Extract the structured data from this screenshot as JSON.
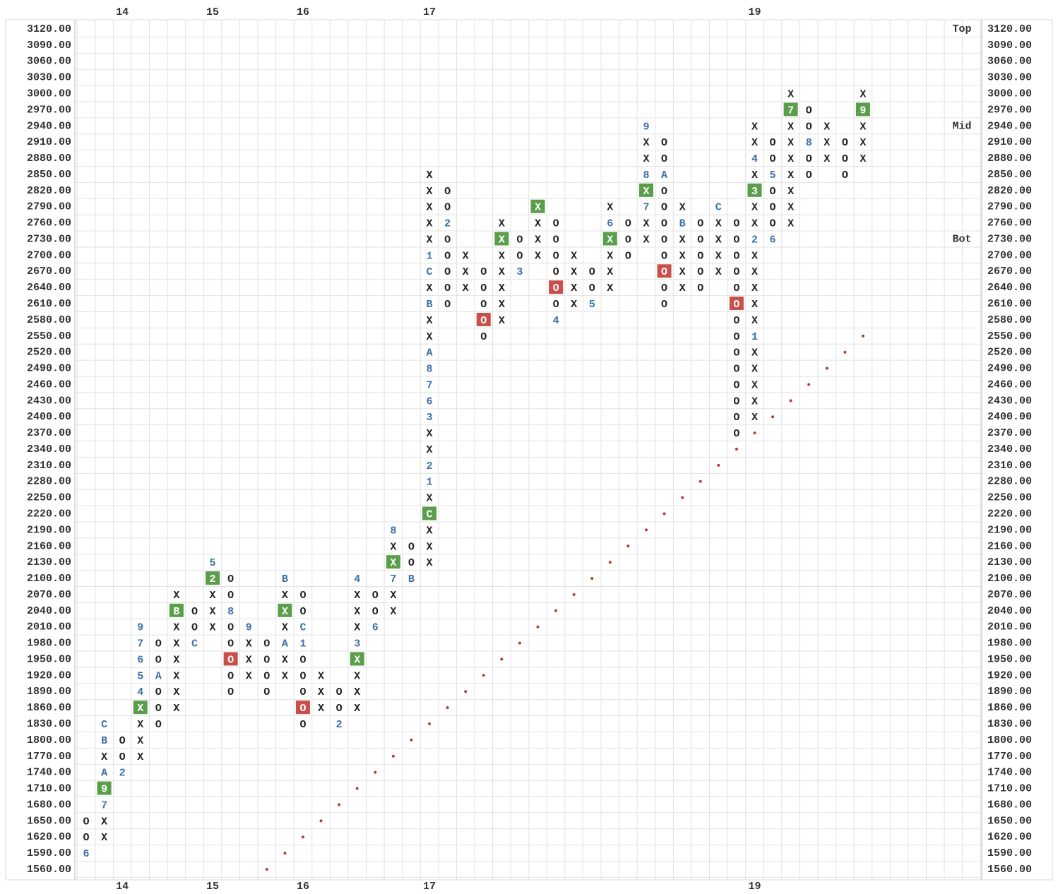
{
  "chart_data": {
    "type": "point-and-figure",
    "box_size": 30,
    "ylim": [
      1560,
      3120
    ],
    "yticks": [
      {
        "value": 3120,
        "label": "3120.00"
      },
      {
        "value": 3090,
        "label": "3090.00"
      },
      {
        "value": 3060,
        "label": "3060.00"
      },
      {
        "value": 3030,
        "label": "3030.00"
      },
      {
        "value": 3000,
        "label": "3000.00"
      },
      {
        "value": 2970,
        "label": "2970.00"
      },
      {
        "value": 2940,
        "label": "2940.00"
      },
      {
        "value": 2910,
        "label": "2910.00"
      },
      {
        "value": 2880,
        "label": "2880.00"
      },
      {
        "value": 2850,
        "label": "2850.00"
      },
      {
        "value": 2820,
        "label": "2820.00"
      },
      {
        "value": 2790,
        "label": "2790.00"
      },
      {
        "value": 2760,
        "label": "2760.00"
      },
      {
        "value": 2730,
        "label": "2730.00"
      },
      {
        "value": 2700,
        "label": "2700.00"
      },
      {
        "value": 2670,
        "label": "2670.00"
      },
      {
        "value": 2640,
        "label": "2640.00"
      },
      {
        "value": 2610,
        "label": "2610.00"
      },
      {
        "value": 2580,
        "label": "2580.00"
      },
      {
        "value": 2550,
        "label": "2550.00"
      },
      {
        "value": 2520,
        "label": "2520.00"
      },
      {
        "value": 2490,
        "label": "2490.00"
      },
      {
        "value": 2460,
        "label": "2460.00"
      },
      {
        "value": 2430,
        "label": "2430.00"
      },
      {
        "value": 2400,
        "label": "2400.00"
      },
      {
        "value": 2370,
        "label": "2370.00"
      },
      {
        "value": 2340,
        "label": "2340.00"
      },
      {
        "value": 2310,
        "label": "2310.00"
      },
      {
        "value": 2280,
        "label": "2280.00"
      },
      {
        "value": 2250,
        "label": "2250.00"
      },
      {
        "value": 2220,
        "label": "2220.00"
      },
      {
        "value": 2190,
        "label": "2190.00"
      },
      {
        "value": 2160,
        "label": "2160.00"
      },
      {
        "value": 2130,
        "label": "2130.00"
      },
      {
        "value": 2100,
        "label": "2100.00"
      },
      {
        "value": 2070,
        "label": "2070.00"
      },
      {
        "value": 2040,
        "label": "2040.00"
      },
      {
        "value": 2010,
        "label": "2010.00"
      },
      {
        "value": 1980,
        "label": "1980.00"
      },
      {
        "value": 1950,
        "label": "1950.00"
      },
      {
        "value": 1920,
        "label": "1920.00"
      },
      {
        "value": 1890,
        "label": "1890.00"
      },
      {
        "value": 1860,
        "label": "1860.00"
      },
      {
        "value": 1830,
        "label": "1830.00"
      },
      {
        "value": 1800,
        "label": "1800.00"
      },
      {
        "value": 1770,
        "label": "1770.00"
      },
      {
        "value": 1740,
        "label": "1740.00"
      },
      {
        "value": 1710,
        "label": "1710.00"
      },
      {
        "value": 1680,
        "label": "1680.00"
      },
      {
        "value": 1650,
        "label": "1650.00"
      },
      {
        "value": 1620,
        "label": "1620.00"
      },
      {
        "value": 1590,
        "label": "1590.00"
      },
      {
        "value": 1560,
        "label": "1560.00"
      }
    ],
    "grid": true,
    "symbol_color": "#222222",
    "label_color": "#3f6fa8",
    "highlight_colors": {
      "X": "#5a9e4b",
      "O": "#c9504a"
    },
    "trend_color": "#c0392b",
    "years": [
      {
        "column": 2,
        "year": 14
      },
      {
        "column": 7,
        "year": 15
      },
      {
        "column": 12,
        "year": 16
      },
      {
        "column": 19,
        "year": 17
      },
      {
        "column": 37,
        "year": 19
      }
    ],
    "levels": [
      {
        "name": "Top",
        "price": 3120
      },
      {
        "name": "Mid",
        "price": 2940
      },
      {
        "name": "Bot",
        "price": 2730
      }
    ],
    "trend": {
      "columns": [
        10,
        43
      ],
      "prices": [
        1560,
        2550
      ]
    },
    "columns": [
      {
        "type": "O",
        "low": 1590,
        "high": 1650,
        "labels": [
          {
            "price": 1590,
            "text": "6"
          }
        ]
      },
      {
        "type": "X",
        "low": 1620,
        "high": 1830,
        "labels": [
          {
            "price": 1680,
            "text": "7"
          },
          {
            "price": 1710,
            "text": "9",
            "highlight": true
          },
          {
            "price": 1740,
            "text": "A"
          },
          {
            "price": 1800,
            "text": "B"
          },
          {
            "price": 1830,
            "text": "C"
          }
        ]
      },
      {
        "type": "O",
        "low": 1740,
        "high": 1800,
        "labels": [
          {
            "price": 1740,
            "text": "2"
          }
        ]
      },
      {
        "type": "X",
        "low": 1770,
        "high": 2010,
        "labels": [
          {
            "price": 1860,
            "highlight": true
          },
          {
            "price": 1890,
            "text": "4"
          },
          {
            "price": 1920,
            "text": "5"
          },
          {
            "price": 1950,
            "text": "6"
          },
          {
            "price": 1980,
            "text": "7"
          },
          {
            "price": 2010,
            "text": "9"
          }
        ]
      },
      {
        "type": "O",
        "low": 1830,
        "high": 1980,
        "labels": [
          {
            "price": 1920,
            "text": "A"
          }
        ]
      },
      {
        "type": "X",
        "low": 1860,
        "high": 2070,
        "labels": [
          {
            "price": 2040,
            "text": "B",
            "highlight": true
          }
        ]
      },
      {
        "type": "O",
        "low": 1980,
        "high": 2040,
        "labels": [
          {
            "price": 1980,
            "text": "C"
          }
        ]
      },
      {
        "type": "X",
        "low": 2010,
        "high": 2130,
        "labels": [
          {
            "price": 2100,
            "text": "2",
            "highlight": true
          },
          {
            "price": 2130,
            "text": "5"
          }
        ]
      },
      {
        "type": "O",
        "low": 1890,
        "high": 2100,
        "labels": [
          {
            "price": 2040,
            "text": "8"
          },
          {
            "price": 1950,
            "highlight": true
          }
        ]
      },
      {
        "type": "X",
        "low": 1920,
        "high": 2010,
        "labels": [
          {
            "price": 2010,
            "text": "9"
          }
        ]
      },
      {
        "type": "O",
        "low": 1890,
        "high": 1980,
        "labels": []
      },
      {
        "type": "X",
        "low": 1920,
        "high": 2100,
        "labels": [
          {
            "price": 1980,
            "text": "A"
          },
          {
            "price": 2040,
            "highlight": true
          },
          {
            "price": 2100,
            "text": "B"
          }
        ]
      },
      {
        "type": "O",
        "low": 1830,
        "high": 2070,
        "labels": [
          {
            "price": 2010,
            "text": "C"
          },
          {
            "price": 1980,
            "text": "1"
          },
          {
            "price": 1860,
            "highlight": true
          }
        ]
      },
      {
        "type": "X",
        "low": 1860,
        "high": 1920,
        "labels": []
      },
      {
        "type": "O",
        "low": 1830,
        "high": 1890,
        "labels": [
          {
            "price": 1830,
            "text": "2"
          }
        ]
      },
      {
        "type": "X",
        "low": 1860,
        "high": 2100,
        "labels": [
          {
            "price": 1950,
            "highlight": true
          },
          {
            "price": 1980,
            "text": "3"
          },
          {
            "price": 2100,
            "text": "4"
          }
        ]
      },
      {
        "type": "O",
        "low": 2010,
        "high": 2070,
        "labels": [
          {
            "price": 2010,
            "text": "6"
          }
        ]
      },
      {
        "type": "X",
        "low": 2040,
        "high": 2190,
        "labels": [
          {
            "price": 2100,
            "text": "7"
          },
          {
            "price": 2130,
            "highlight": true
          },
          {
            "price": 2190,
            "text": "8"
          }
        ]
      },
      {
        "type": "O",
        "low": 2100,
        "high": 2160,
        "labels": [
          {
            "price": 2100,
            "text": "B"
          }
        ]
      },
      {
        "type": "X",
        "low": 2130,
        "high": 2850,
        "labels": [
          {
            "price": 2220,
            "text": "C",
            "highlight": true
          },
          {
            "price": 2280,
            "text": "1"
          },
          {
            "price": 2310,
            "text": "2"
          },
          {
            "price": 2400,
            "text": "3"
          },
          {
            "price": 2430,
            "text": "6"
          },
          {
            "price": 2460,
            "text": "7"
          },
          {
            "price": 2490,
            "text": "8"
          },
          {
            "price": 2520,
            "text": "A"
          },
          {
            "price": 2610,
            "text": "B"
          },
          {
            "price": 2670,
            "text": "C"
          },
          {
            "price": 2700,
            "text": "1"
          }
        ]
      },
      {
        "type": "O",
        "low": 2610,
        "high": 2820,
        "labels": [
          {
            "price": 2760,
            "text": "2"
          }
        ]
      },
      {
        "type": "X",
        "low": 2640,
        "high": 2700,
        "labels": []
      },
      {
        "type": "O",
        "low": 2550,
        "high": 2670,
        "labels": [
          {
            "price": 2580,
            "highlight": true
          }
        ]
      },
      {
        "type": "X",
        "low": 2580,
        "high": 2760,
        "labels": [
          {
            "price": 2730,
            "highlight": true
          }
        ]
      },
      {
        "type": "O",
        "low": 2670,
        "high": 2730,
        "labels": [
          {
            "price": 2670,
            "text": "3"
          }
        ]
      },
      {
        "type": "X",
        "low": 2700,
        "high": 2790,
        "labels": [
          {
            "price": 2790,
            "highlight": true
          }
        ]
      },
      {
        "type": "O",
        "low": 2580,
        "high": 2760,
        "labels": [
          {
            "price": 2640,
            "highlight": true
          },
          {
            "price": 2580,
            "text": "4"
          }
        ]
      },
      {
        "type": "X",
        "low": 2610,
        "high": 2700,
        "labels": []
      },
      {
        "type": "O",
        "low": 2610,
        "high": 2670,
        "labels": [
          {
            "price": 2610,
            "text": "5"
          }
        ]
      },
      {
        "type": "X",
        "low": 2640,
        "high": 2790,
        "labels": [
          {
            "price": 2730,
            "highlight": true
          },
          {
            "price": 2760,
            "text": "6"
          }
        ]
      },
      {
        "type": "O",
        "low": 2700,
        "high": 2760,
        "labels": []
      },
      {
        "type": "X",
        "low": 2730,
        "high": 2940,
        "labels": [
          {
            "price": 2790,
            "text": "7"
          },
          {
            "price": 2820,
            "highlight": true
          },
          {
            "price": 2850,
            "text": "8"
          },
          {
            "price": 2940,
            "text": "9"
          }
        ]
      },
      {
        "type": "O",
        "low": 2610,
        "high": 2910,
        "labels": [
          {
            "price": 2850,
            "text": "A"
          },
          {
            "price": 2670,
            "highlight": true
          }
        ]
      },
      {
        "type": "X",
        "low": 2640,
        "high": 2790,
        "labels": [
          {
            "price": 2760,
            "text": "B"
          }
        ]
      },
      {
        "type": "O",
        "low": 2640,
        "high": 2760,
        "labels": []
      },
      {
        "type": "X",
        "low": 2670,
        "high": 2790,
        "labels": [
          {
            "price": 2790,
            "text": "C"
          }
        ]
      },
      {
        "type": "O",
        "low": 2370,
        "high": 2760,
        "labels": [
          {
            "price": 2610,
            "highlight": true
          }
        ]
      },
      {
        "type": "X",
        "low": 2400,
        "high": 2940,
        "labels": [
          {
            "price": 2550,
            "text": "1"
          },
          {
            "price": 2730,
            "text": "2"
          },
          {
            "price": 2820,
            "text": "3",
            "highlight": true
          },
          {
            "price": 2880,
            "text": "4"
          }
        ]
      },
      {
        "type": "O",
        "low": 2730,
        "high": 2910,
        "labels": [
          {
            "price": 2850,
            "text": "5"
          },
          {
            "price": 2730,
            "text": "6"
          }
        ]
      },
      {
        "type": "X",
        "low": 2760,
        "high": 3000,
        "labels": [
          {
            "price": 2970,
            "text": "7",
            "highlight": true
          }
        ]
      },
      {
        "type": "O",
        "low": 2850,
        "high": 2970,
        "labels": [
          {
            "price": 2910,
            "text": "8"
          }
        ]
      },
      {
        "type": "X",
        "low": 2880,
        "high": 2940,
        "labels": []
      },
      {
        "type": "O",
        "low": 2850,
        "high": 2910,
        "labels": []
      },
      {
        "type": "X",
        "low": 2880,
        "high": 3000,
        "labels": [
          {
            "price": 2970,
            "text": "9",
            "highlight": true
          }
        ]
      }
    ]
  }
}
